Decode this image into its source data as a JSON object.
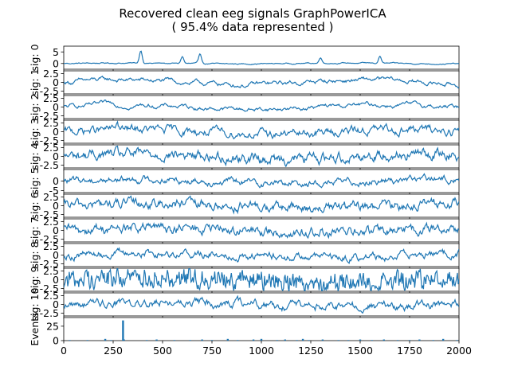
{
  "figure": {
    "title_line1": "Recovered clean eeg signals GraphPowerICA",
    "title_line2": "( 95.4% data represented )"
  },
  "chart_data": {
    "type": "line",
    "x_range": [
      0,
      2000
    ],
    "x_ticks": [
      0,
      250,
      500,
      750,
      1000,
      1250,
      1500,
      1750,
      2000
    ],
    "grid": false,
    "line_color": "#1f77b4",
    "panels": [
      {
        "ylabel": "sig: 0",
        "ylim": [
          -2.5,
          7.5
        ],
        "yticks": [
          0,
          5
        ],
        "base_amplitude": 0.35,
        "smoothness": 0.85,
        "spikes": [
          [
            390,
            5.5
          ],
          [
            600,
            3.0
          ],
          [
            690,
            4.2
          ],
          [
            1300,
            2.5
          ],
          [
            1600,
            3.0
          ]
        ]
      },
      {
        "ylabel": "sig: 1",
        "ylim": [
          -3.3,
          3.3
        ],
        "yticks": [
          -2.5,
          0.0,
          2.5
        ],
        "base_amplitude": 1.3,
        "smoothness": 0.9,
        "spikes": []
      },
      {
        "ylabel": "sig: 2",
        "ylim": [
          -3.3,
          3.3
        ],
        "yticks": [
          -2.5,
          0.0,
          2.5
        ],
        "base_amplitude": 1.2,
        "smoothness": 0.9,
        "spikes": []
      },
      {
        "ylabel": "sig: 3",
        "ylim": [
          -3.3,
          3.3
        ],
        "yticks": [
          -2.5,
          0.0,
          2.5
        ],
        "base_amplitude": 1.3,
        "smoothness": 0.8,
        "spikes": [
          [
            270,
            2.0
          ]
        ]
      },
      {
        "ylabel": "sig: 4",
        "ylim": [
          -3.3,
          3.3
        ],
        "yticks": [
          -2.5,
          0.0,
          2.5
        ],
        "base_amplitude": 1.4,
        "smoothness": 0.75,
        "spikes": []
      },
      {
        "ylabel": "sig: 5",
        "ylim": [
          -6.0,
          6.0
        ],
        "yticks": [
          -5,
          0
        ],
        "base_amplitude": 2.0,
        "smoothness": 0.8,
        "spikes": []
      },
      {
        "ylabel": "sig: 6",
        "ylim": [
          -3.3,
          3.3
        ],
        "yticks": [
          -2.5,
          0.0,
          2.5
        ],
        "base_amplitude": 1.3,
        "smoothness": 0.75,
        "spikes": []
      },
      {
        "ylabel": "sig: 7",
        "ylim": [
          -3.3,
          3.3
        ],
        "yticks": [
          -2.5,
          0.0,
          2.5
        ],
        "base_amplitude": 1.3,
        "smoothness": 0.75,
        "spikes": []
      },
      {
        "ylabel": "sig: 8",
        "ylim": [
          -3.3,
          3.3
        ],
        "yticks": [
          -2.5,
          0.0,
          2.5
        ],
        "base_amplitude": 1.2,
        "smoothness": 0.8,
        "spikes": []
      },
      {
        "ylabel": "sig: 9",
        "ylim": [
          -3.3,
          3.3
        ],
        "yticks": [
          -2.5,
          0.0,
          2.5
        ],
        "base_amplitude": 1.4,
        "smoothness": 0.4,
        "spikes": []
      },
      {
        "ylabel": "sig: 10",
        "ylim": [
          -3.3,
          3.3
        ],
        "yticks": [
          -2.5,
          0.0,
          2.5
        ],
        "base_amplitude": 1.3,
        "smoothness": 0.8,
        "spikes": []
      }
    ],
    "events_panel": {
      "ylabel": "Events",
      "ylim": [
        0,
        40
      ],
      "yticks": [
        0,
        25
      ],
      "values": [
        [
          30,
          1
        ],
        [
          120,
          1
        ],
        [
          210,
          3
        ],
        [
          240,
          1
        ],
        [
          300,
          35
        ],
        [
          305,
          2
        ],
        [
          420,
          1
        ],
        [
          470,
          2
        ],
        [
          560,
          1
        ],
        [
          640,
          1
        ],
        [
          700,
          2
        ],
        [
          750,
          1
        ],
        [
          830,
          3
        ],
        [
          880,
          1
        ],
        [
          960,
          2
        ],
        [
          1000,
          3
        ],
        [
          1080,
          1
        ],
        [
          1120,
          2
        ],
        [
          1180,
          1
        ],
        [
          1210,
          3
        ],
        [
          1240,
          1
        ],
        [
          1310,
          2
        ],
        [
          1390,
          1
        ],
        [
          1440,
          1
        ],
        [
          1500,
          2
        ],
        [
          1560,
          1
        ],
        [
          1620,
          2
        ],
        [
          1690,
          1
        ],
        [
          1750,
          1
        ],
        [
          1800,
          2
        ],
        [
          1870,
          1
        ],
        [
          1920,
          3
        ],
        [
          1990,
          1
        ]
      ]
    }
  }
}
